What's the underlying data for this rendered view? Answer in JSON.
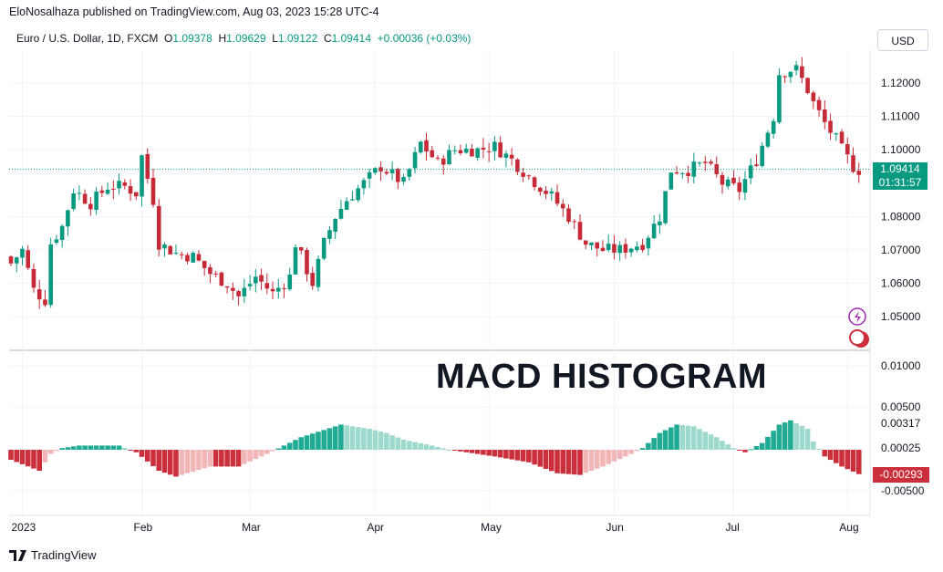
{
  "header": {
    "published": "EloNosalhaza published on TradingView.com, Aug 03, 2023 15:28 UTC-4",
    "symbol": "Euro / U.S. Dollar, 1D, FXCM",
    "o_label": "O",
    "o": "1.09378",
    "h_label": "H",
    "h": "1.09629",
    "l_label": "L",
    "l": "1.09122",
    "c_label": "C",
    "c": "1.09414",
    "change": "+0.00036 (+0.03%)",
    "currency": "USD"
  },
  "footer": {
    "brand": "TradingView"
  },
  "price_label": {
    "value": "1.09414",
    "countdown": "01:31:57"
  },
  "hist_label": "-0.00293",
  "colors": {
    "up": "#089981",
    "down": "#c62a36",
    "hist_up_strong": "#22ab94",
    "hist_up_weak": "#9fd9cd",
    "hist_down_strong": "#cc2f3c",
    "hist_down_weak": "#f2b6b9"
  },
  "chart_data": [
    {
      "type": "candlestick",
      "title": "Euro / U.S. Dollar, 1D, FXCM",
      "n_bars": 150,
      "price_ticks": [
        "1.12000",
        "1.11000",
        "1.10000",
        "1.08000",
        "1.07000",
        "1.06000",
        "1.05000"
      ],
      "ylim": [
        1.043,
        1.13
      ],
      "x_ticks": [
        "2023",
        "Feb",
        "Mar",
        "Apr",
        "May",
        "Jun",
        "Jul",
        "Aug"
      ],
      "x_tick_bars": [
        2,
        23,
        42,
        64,
        84,
        106,
        127,
        147
      ],
      "close_keypoints": [
        [
          0,
          1.066
        ],
        [
          2,
          1.07
        ],
        [
          4,
          1.058
        ],
        [
          6,
          1.055
        ],
        [
          7,
          1.072
        ],
        [
          9,
          1.077
        ],
        [
          11,
          1.088
        ],
        [
          14,
          1.084
        ],
        [
          17,
          1.089
        ],
        [
          20,
          1.089
        ],
        [
          22,
          1.087
        ],
        [
          23,
          1.098
        ],
        [
          25,
          1.085
        ],
        [
          26,
          1.072
        ],
        [
          29,
          1.069
        ],
        [
          32,
          1.068
        ],
        [
          35,
          1.063
        ],
        [
          38,
          1.06
        ],
        [
          40,
          1.056
        ],
        [
          43,
          1.062
        ],
        [
          46,
          1.057
        ],
        [
          49,
          1.062
        ],
        [
          50,
          1.072
        ],
        [
          53,
          1.06
        ],
        [
          55,
          1.072
        ],
        [
          57,
          1.08
        ],
        [
          59,
          1.085
        ],
        [
          62,
          1.09
        ],
        [
          65,
          1.095
        ],
        [
          69,
          1.09
        ],
        [
          72,
          1.102
        ],
        [
          75,
          1.096
        ],
        [
          78,
          1.1
        ],
        [
          82,
          1.1
        ],
        [
          85,
          1.101
        ],
        [
          88,
          1.097
        ],
        [
          91,
          1.092
        ],
        [
          95,
          1.086
        ],
        [
          98,
          1.08
        ],
        [
          101,
          1.072
        ],
        [
          104,
          1.07
        ],
        [
          107,
          1.07
        ],
        [
          111,
          1.072
        ],
        [
          114,
          1.08
        ],
        [
          116,
          1.094
        ],
        [
          119,
          1.094
        ],
        [
          122,
          1.096
        ],
        [
          125,
          1.09
        ],
        [
          128,
          1.088
        ],
        [
          131,
          1.097
        ],
        [
          134,
          1.11
        ],
        [
          135,
          1.123
        ],
        [
          137,
          1.124
        ],
        [
          138,
          1.124
        ],
        [
          140,
          1.118
        ],
        [
          141,
          1.114
        ],
        [
          143,
          1.108
        ],
        [
          145,
          1.103
        ],
        [
          146,
          1.1
        ],
        [
          148,
          1.095
        ],
        [
          149,
          1.094
        ]
      ],
      "current_price": 1.09414
    },
    {
      "type": "bar",
      "title": "MACD HISTOGRAM",
      "y_ticks": [
        "0.01000",
        "0.00500",
        "0.00317",
        "0.00025",
        "-0.00500"
      ],
      "ylim": [
        -0.0075,
        0.0115
      ],
      "value_keypoints": [
        [
          0,
          -0.0012
        ],
        [
          5,
          -0.0025
        ],
        [
          7,
          -0.0005
        ],
        [
          9,
          0.0002
        ],
        [
          12,
          0.0005
        ],
        [
          19,
          0.0005
        ],
        [
          22,
          -0.0003
        ],
        [
          26,
          -0.0025
        ],
        [
          29,
          -0.0032
        ],
        [
          35,
          -0.002
        ],
        [
          40,
          -0.002
        ],
        [
          45,
          -0.0005
        ],
        [
          48,
          0.0005
        ],
        [
          51,
          0.0015
        ],
        [
          58,
          0.003
        ],
        [
          63,
          0.0025
        ],
        [
          66,
          0.002
        ],
        [
          69,
          0.0012
        ],
        [
          74,
          0.0005
        ],
        [
          77,
          0.0
        ],
        [
          80,
          -0.0003
        ],
        [
          85,
          -0.0008
        ],
        [
          91,
          -0.0015
        ],
        [
          96,
          -0.0028
        ],
        [
          100,
          -0.003
        ],
        [
          104,
          -0.002
        ],
        [
          109,
          -0.0005
        ],
        [
          111,
          0.0002
        ],
        [
          114,
          0.002
        ],
        [
          117,
          0.003
        ],
        [
          120,
          0.0028
        ],
        [
          124,
          0.0015
        ],
        [
          127,
          0.0002
        ],
        [
          129,
          -0.0003
        ],
        [
          132,
          0.0008
        ],
        [
          135,
          0.003
        ],
        [
          137,
          0.0035
        ],
        [
          140,
          0.0025
        ],
        [
          141,
          0.001
        ],
        [
          143,
          -0.0008
        ],
        [
          146,
          -0.002
        ],
        [
          149,
          -0.0029
        ]
      ]
    }
  ]
}
